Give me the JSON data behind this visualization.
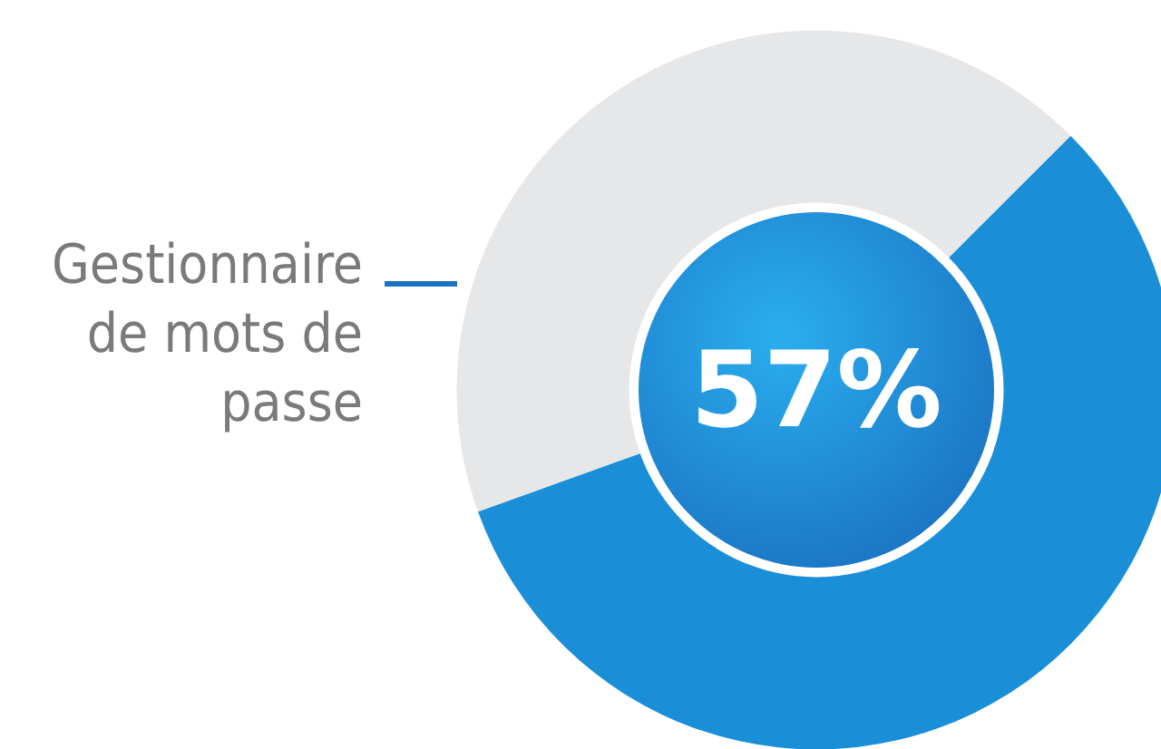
{
  "chart_data": {
    "type": "donut",
    "title": "Gestionnaire de mots de passe",
    "categories": [
      null,
      null
    ],
    "values": [
      57,
      43
    ],
    "colors": [
      "#1a8fd8",
      "#e6e7e9"
    ],
    "annotations": [
      "57%"
    ]
  }
}
